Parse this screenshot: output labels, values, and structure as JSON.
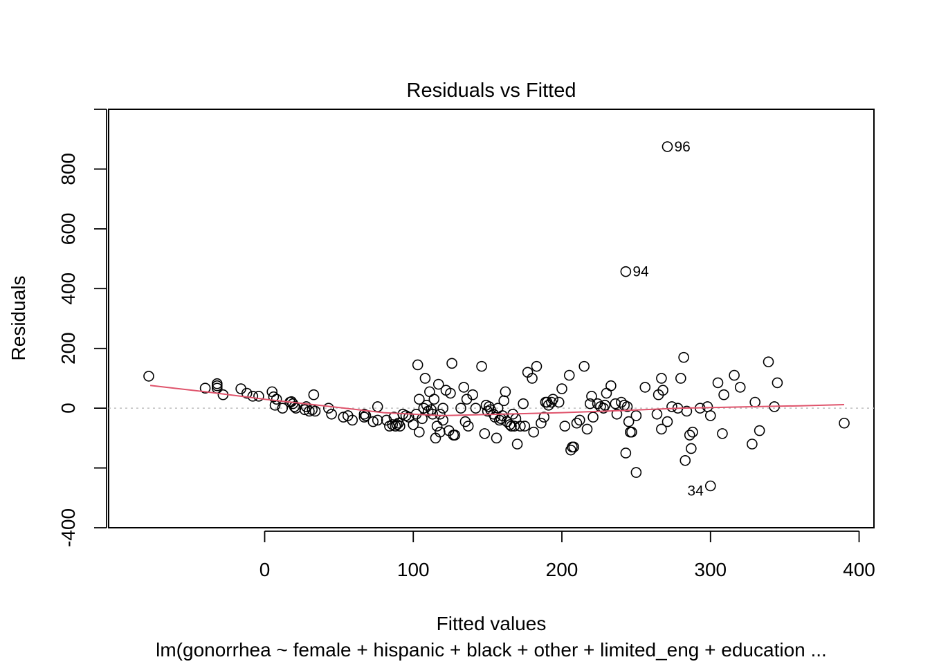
{
  "chart_data": {
    "type": "scatter",
    "title": "Residuals vs Fitted",
    "xlabel": "Fitted values",
    "ylabel": "Residuals",
    "subtitle": "lm(gonorrhea ~ female + hispanic + black + other + limited_eng + education  ...",
    "xlim": [
      -105,
      410
    ],
    "ylim": [
      -400,
      1000
    ],
    "xticks": [
      0,
      100,
      200,
      300,
      400
    ],
    "yticks": [
      -400,
      -200,
      0,
      200,
      400,
      600,
      800,
      1000
    ],
    "ytick_labels": [
      "-400",
      "",
      "0",
      "200",
      "400",
      "600",
      "800",
      ""
    ],
    "reference_line": {
      "y": 0,
      "style": "dotted",
      "color": "#bebebe"
    },
    "smoother": {
      "color": "#DF536B",
      "x": [
        -77,
        -40,
        0,
        40,
        80,
        120,
        160,
        200,
        240,
        280,
        320,
        360,
        390
      ],
      "y": [
        76,
        55,
        30,
        8,
        -15,
        -25,
        -20,
        -15,
        -8,
        0,
        4,
        8,
        12
      ]
    },
    "labeled_points": [
      {
        "label": "96",
        "x": 271,
        "y": 875,
        "side": "right"
      },
      {
        "label": "94",
        "x": 243,
        "y": 457,
        "side": "right"
      },
      {
        "label": "34",
        "x": 300,
        "y": -260,
        "side": "left"
      }
    ],
    "points": [
      [
        -78,
        107
      ],
      [
        -40,
        67
      ],
      [
        -32,
        82
      ],
      [
        -32,
        75
      ],
      [
        -32,
        67
      ],
      [
        -28,
        45
      ],
      [
        -16,
        65
      ],
      [
        -12,
        50
      ],
      [
        -8,
        40
      ],
      [
        -4,
        40
      ],
      [
        5,
        55
      ],
      [
        6,
        38
      ],
      [
        7,
        10
      ],
      [
        8,
        30
      ],
      [
        12,
        0
      ],
      [
        17,
        20
      ],
      [
        18,
        22
      ],
      [
        19,
        15
      ],
      [
        20,
        5
      ],
      [
        21,
        0
      ],
      [
        27,
        -5
      ],
      [
        28,
        5
      ],
      [
        30,
        -10
      ],
      [
        32,
        -5
      ],
      [
        33,
        45
      ],
      [
        34,
        -10
      ],
      [
        43,
        0
      ],
      [
        45,
        -20
      ],
      [
        53,
        -30
      ],
      [
        56,
        -25
      ],
      [
        59,
        -40
      ],
      [
        67,
        -20
      ],
      [
        67,
        -30
      ],
      [
        68,
        -25
      ],
      [
        73,
        -45
      ],
      [
        76,
        -40
      ],
      [
        76,
        5
      ],
      [
        82,
        -40
      ],
      [
        84,
        -60
      ],
      [
        86,
        -55
      ],
      [
        87,
        -30
      ],
      [
        88,
        -60
      ],
      [
        89,
        -55
      ],
      [
        90,
        -50
      ],
      [
        91,
        -60
      ],
      [
        93,
        -20
      ],
      [
        95,
        -25
      ],
      [
        97,
        -30
      ],
      [
        100,
        -55
      ],
      [
        102,
        -20
      ],
      [
        103,
        145
      ],
      [
        104,
        30
      ],
      [
        104,
        -80
      ],
      [
        106,
        -35
      ],
      [
        107,
        0
      ],
      [
        108,
        100
      ],
      [
        109,
        10
      ],
      [
        110,
        -10
      ],
      [
        111,
        55
      ],
      [
        112,
        -5
      ],
      [
        113,
        -20
      ],
      [
        114,
        30
      ],
      [
        115,
        -100
      ],
      [
        116,
        -60
      ],
      [
        117,
        80
      ],
      [
        118,
        -80
      ],
      [
        118,
        -20
      ],
      [
        120,
        0
      ],
      [
        120,
        -40
      ],
      [
        122,
        60
      ],
      [
        124,
        -75
      ],
      [
        125,
        50
      ],
      [
        126,
        150
      ],
      [
        127,
        -90
      ],
      [
        128,
        -90
      ],
      [
        132,
        0
      ],
      [
        134,
        70
      ],
      [
        135,
        -45
      ],
      [
        136,
        30
      ],
      [
        137,
        -60
      ],
      [
        140,
        45
      ],
      [
        142,
        0
      ],
      [
        146,
        140
      ],
      [
        148,
        -85
      ],
      [
        149,
        10
      ],
      [
        150,
        -10
      ],
      [
        151,
        5
      ],
      [
        152,
        -5
      ],
      [
        154,
        -20
      ],
      [
        155,
        -30
      ],
      [
        156,
        -100
      ],
      [
        157,
        0
      ],
      [
        158,
        -40
      ],
      [
        159,
        -35
      ],
      [
        160,
        -25
      ],
      [
        161,
        25
      ],
      [
        162,
        55
      ],
      [
        163,
        -45
      ],
      [
        165,
        -55
      ],
      [
        166,
        -60
      ],
      [
        167,
        -20
      ],
      [
        168,
        -60
      ],
      [
        169,
        -35
      ],
      [
        170,
        -120
      ],
      [
        172,
        -60
      ],
      [
        174,
        15
      ],
      [
        175,
        -60
      ],
      [
        177,
        120
      ],
      [
        180,
        100
      ],
      [
        181,
        -80
      ],
      [
        183,
        140
      ],
      [
        186,
        -50
      ],
      [
        188,
        -30
      ],
      [
        189,
        20
      ],
      [
        190,
        20
      ],
      [
        191,
        10
      ],
      [
        193,
        20
      ],
      [
        194,
        30
      ],
      [
        198,
        20
      ],
      [
        200,
        65
      ],
      [
        202,
        -60
      ],
      [
        205,
        110
      ],
      [
        206,
        -140
      ],
      [
        207,
        -130
      ],
      [
        208,
        -130
      ],
      [
        210,
        -50
      ],
      [
        212,
        -40
      ],
      [
        215,
        140
      ],
      [
        217,
        -70
      ],
      [
        219,
        15
      ],
      [
        220,
        40
      ],
      [
        221,
        -30
      ],
      [
        224,
        15
      ],
      [
        226,
        5
      ],
      [
        228,
        0
      ],
      [
        229,
        10
      ],
      [
        230,
        50
      ],
      [
        233,
        75
      ],
      [
        236,
        15
      ],
      [
        237,
        -20
      ],
      [
        240,
        20
      ],
      [
        242,
        10
      ],
      [
        243,
        -150
      ],
      [
        244,
        5
      ],
      [
        245,
        -45
      ],
      [
        246,
        -80
      ],
      [
        247,
        -80
      ],
      [
        250,
        -215
      ],
      [
        250,
        -25
      ],
      [
        256,
        70
      ],
      [
        264,
        -20
      ],
      [
        265,
        45
      ],
      [
        267,
        -70
      ],
      [
        267,
        100
      ],
      [
        268,
        60
      ],
      [
        271,
        -45
      ],
      [
        274,
        5
      ],
      [
        278,
        0
      ],
      [
        280,
        100
      ],
      [
        282,
        170
      ],
      [
        283,
        -175
      ],
      [
        284,
        -10
      ],
      [
        286,
        -90
      ],
      [
        287,
        -135
      ],
      [
        288,
        -80
      ],
      [
        293,
        0
      ],
      [
        298,
        5
      ],
      [
        300,
        -25
      ],
      [
        305,
        85
      ],
      [
        308,
        -85
      ],
      [
        309,
        45
      ],
      [
        316,
        110
      ],
      [
        320,
        70
      ],
      [
        328,
        -120
      ],
      [
        330,
        20
      ],
      [
        333,
        -75
      ],
      [
        339,
        155
      ],
      [
        343,
        5
      ],
      [
        345,
        85
      ],
      [
        390,
        -50
      ]
    ]
  }
}
